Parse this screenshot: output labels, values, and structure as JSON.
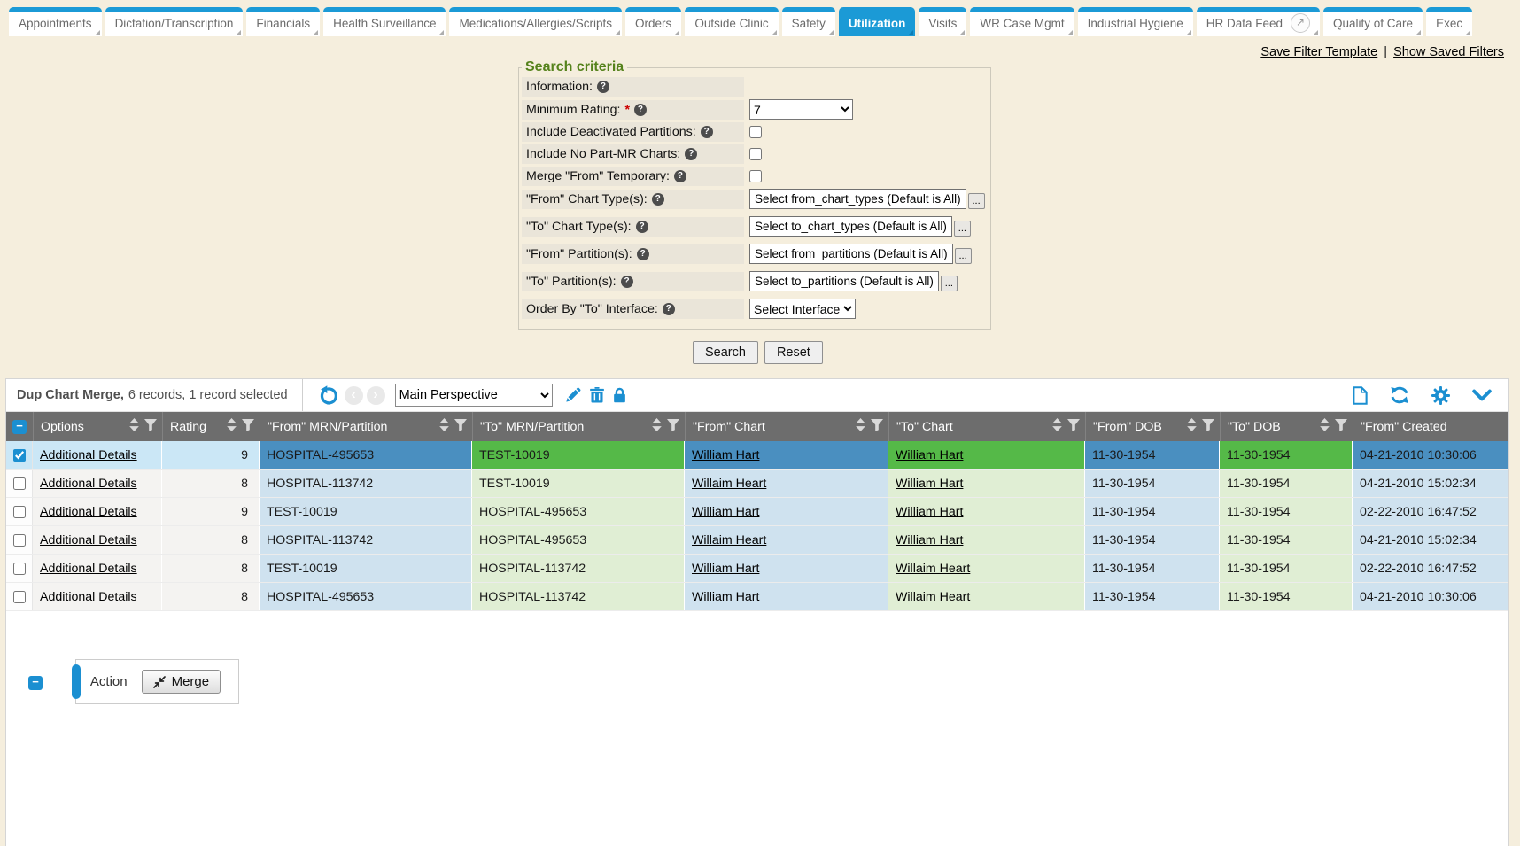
{
  "icons": {
    "help": "?",
    "external_link": "↗",
    "undo": "↺",
    "prev": "‹",
    "next": "›",
    "edit": "✎",
    "delete": "🗑",
    "lock": "🔒",
    "new_document": "🗋",
    "refresh": "⟳",
    "settings": "⚙",
    "collapse": "⌄",
    "sort": "⇕",
    "filter": "▼",
    "minus": "−",
    "merge": "⇲",
    "ellipsis": "..."
  },
  "tabs": {
    "items": [
      {
        "label": "Appointments"
      },
      {
        "label": "Dictation/Transcription"
      },
      {
        "label": "Financials"
      },
      {
        "label": "Health Surveillance"
      },
      {
        "label": "Medications/Allergies/Scripts"
      },
      {
        "label": "Orders"
      },
      {
        "label": "Outside Clinic"
      },
      {
        "label": "Safety"
      },
      {
        "label": "Utilization",
        "active": true
      },
      {
        "label": "Visits"
      },
      {
        "label": "WR Case Mgmt"
      },
      {
        "label": "Industrial Hygiene"
      },
      {
        "label": "HR Data Feed",
        "external_icon": true
      },
      {
        "label": "Quality of Care"
      },
      {
        "label": "Exec"
      }
    ]
  },
  "links": {
    "save_filter_template": "Save Filter Template",
    "separator": "|",
    "show_saved_filters": "Show Saved Filters"
  },
  "search": {
    "legend": "Search criteria",
    "required_marker": "*",
    "search_button": "Search",
    "reset_button": "Reset",
    "rows": [
      {
        "label": "Information:",
        "control": "none"
      },
      {
        "label": "Minimum Rating:",
        "control": "select",
        "required": true,
        "value": "7"
      },
      {
        "label": "Include Deactivated Partitions:",
        "control": "checkbox",
        "checked": false
      },
      {
        "label": "Include No Part-MR Charts:",
        "control": "checkbox",
        "checked": false
      },
      {
        "label": "Merge \"From\" Temporary:",
        "control": "checkbox",
        "checked": false
      },
      {
        "label": "\"From\" Chart Type(s):",
        "control": "picker",
        "value": "Select from_chart_types (Default is All)"
      },
      {
        "label": "\"To\" Chart Type(s):",
        "control": "picker",
        "value": "Select to_chart_types (Default is All)"
      },
      {
        "label": "\"From\" Partition(s):",
        "control": "picker",
        "value": "Select from_partitions (Default is All)"
      },
      {
        "label": "\"To\" Partition(s):",
        "control": "picker",
        "value": "Select to_partitions (Default is All)"
      },
      {
        "label": "Order By \"To\" Interface:",
        "control": "select",
        "value": "Select Interface"
      }
    ]
  },
  "grid": {
    "title": "Dup Chart Merge,",
    "summary": "6 records, 1 record selected",
    "perspective": "Main Perspective",
    "columns": [
      {
        "label": "Options"
      },
      {
        "label": "Rating"
      },
      {
        "label": "\"From\" MRN/Partition"
      },
      {
        "label": "\"To\" MRN/Partition"
      },
      {
        "label": "\"From\" Chart"
      },
      {
        "label": "\"To\" Chart"
      },
      {
        "label": "\"From\" DOB"
      },
      {
        "label": "\"To\" DOB"
      },
      {
        "label": "\"From\" Created"
      }
    ],
    "rows": [
      {
        "selected": true,
        "options": "Additional Details",
        "rating": "9",
        "from_mrn": "HOSPITAL-495653",
        "to_mrn": "TEST-10019",
        "from_chart": "William Hart",
        "to_chart": "William Hart",
        "from_dob": "11-30-1954",
        "to_dob": "11-30-1954",
        "from_created": "04-21-2010 10:30:06"
      },
      {
        "selected": false,
        "options": "Additional Details",
        "rating": "8",
        "from_mrn": "HOSPITAL-113742",
        "to_mrn": "TEST-10019",
        "from_chart": "Willaim Heart",
        "to_chart": "William Hart",
        "from_dob": "11-30-1954",
        "to_dob": "11-30-1954",
        "from_created": "04-21-2010 15:02:34"
      },
      {
        "selected": false,
        "options": "Additional Details",
        "rating": "9",
        "from_mrn": "TEST-10019",
        "to_mrn": "HOSPITAL-495653",
        "from_chart": "William Hart",
        "to_chart": "William Hart",
        "from_dob": "11-30-1954",
        "to_dob": "11-30-1954",
        "from_created": "02-22-2010 16:47:52"
      },
      {
        "selected": false,
        "options": "Additional Details",
        "rating": "8",
        "from_mrn": "HOSPITAL-113742",
        "to_mrn": "HOSPITAL-495653",
        "from_chart": "Willaim Heart",
        "to_chart": "William Hart",
        "from_dob": "11-30-1954",
        "to_dob": "11-30-1954",
        "from_created": "04-21-2010 15:02:34"
      },
      {
        "selected": false,
        "options": "Additional Details",
        "rating": "8",
        "from_mrn": "TEST-10019",
        "to_mrn": "HOSPITAL-113742",
        "from_chart": "William Hart",
        "to_chart": "Willaim Heart",
        "from_dob": "11-30-1954",
        "to_dob": "11-30-1954",
        "from_created": "02-22-2010 16:47:52"
      },
      {
        "selected": false,
        "options": "Additional Details",
        "rating": "8",
        "from_mrn": "HOSPITAL-495653",
        "to_mrn": "HOSPITAL-113742",
        "from_chart": "William Hart",
        "to_chart": "Willaim Heart",
        "from_dob": "11-30-1954",
        "to_dob": "11-30-1954",
        "from_created": "04-21-2010 10:30:06"
      }
    ]
  },
  "footer": {
    "action_label": "Action",
    "merge_label": "Merge"
  },
  "colors": {
    "accent": "#1b8fd1",
    "tab_blue": "#1b9ad6",
    "header_gray": "#6d6d6d",
    "selected_from_blue": "#4a8fc0",
    "selected_to_green": "#55b948",
    "from_blue_light": "#cfe2ef",
    "to_green_light": "#e0eed4",
    "legend_green": "#55821c",
    "page_background": "#f5eedd",
    "required_red": "#cc0000"
  }
}
